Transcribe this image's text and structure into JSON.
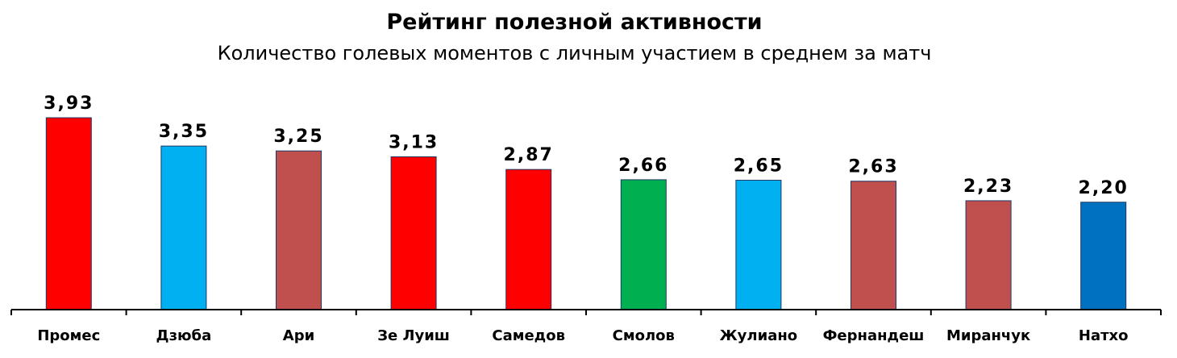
{
  "chart_data": {
    "type": "bar",
    "title": "Рейтинг полезной активности",
    "subtitle": "Количество голевых моментов с личным участием в среднем за матч",
    "categories": [
      "Промес",
      "Дзюба",
      "Ари",
      "Зе Луиш",
      "Самедов",
      "Смолов",
      "Жулиано",
      "Фернандеш",
      "Миранчук",
      "Натхо"
    ],
    "values": [
      3.93,
      3.35,
      3.25,
      3.13,
      2.87,
      2.66,
      2.65,
      2.63,
      2.23,
      2.2
    ],
    "value_labels": [
      "3,93",
      "3,35",
      "3,25",
      "3,13",
      "2,87",
      "2,66",
      "2,65",
      "2,63",
      "2,23",
      "2,20"
    ],
    "colors": [
      "#ff0000",
      "#00b0f0",
      "#c0504d",
      "#ff0000",
      "#ff0000",
      "#00b050",
      "#00b0f0",
      "#c0504d",
      "#c0504d",
      "#0070c0"
    ],
    "ylim": [
      0,
      3.93
    ],
    "grid": false,
    "legend": "none"
  }
}
